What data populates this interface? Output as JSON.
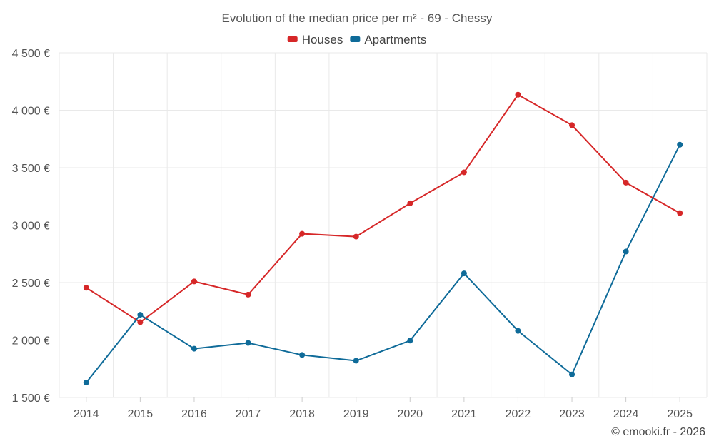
{
  "chart_data": {
    "type": "line",
    "title": "Evolution of the median price per m² - 69 - Chessy",
    "categories": [
      "2014",
      "2015",
      "2016",
      "2017",
      "2018",
      "2019",
      "2020",
      "2021",
      "2022",
      "2023",
      "2024",
      "2025"
    ],
    "series": [
      {
        "name": "Houses",
        "color": "#d62728",
        "values": [
          2455,
          2155,
          2510,
          2395,
          2925,
          2900,
          3190,
          3460,
          4135,
          3870,
          3370,
          3105
        ]
      },
      {
        "name": "Apartments",
        "color": "#0f6b99",
        "values": [
          1630,
          2220,
          1925,
          1975,
          1870,
          1820,
          1995,
          2580,
          2080,
          1700,
          2770,
          3700
        ]
      }
    ],
    "ylim": [
      1500,
      4500
    ],
    "yticks": [
      {
        "value": 1500,
        "label": "1 500 €"
      },
      {
        "value": 2000,
        "label": "2 000 €"
      },
      {
        "value": 2500,
        "label": "2 500 €"
      },
      {
        "value": 3000,
        "label": "3 000 €"
      },
      {
        "value": 3500,
        "label": "3 500 €"
      },
      {
        "value": 4000,
        "label": "4 000 €"
      },
      {
        "value": 4500,
        "label": "4 500 €"
      }
    ],
    "xlabel": "",
    "ylabel": "",
    "grid": true,
    "legend_position": "top-center"
  },
  "credit": "© emooki.fr - 2026"
}
